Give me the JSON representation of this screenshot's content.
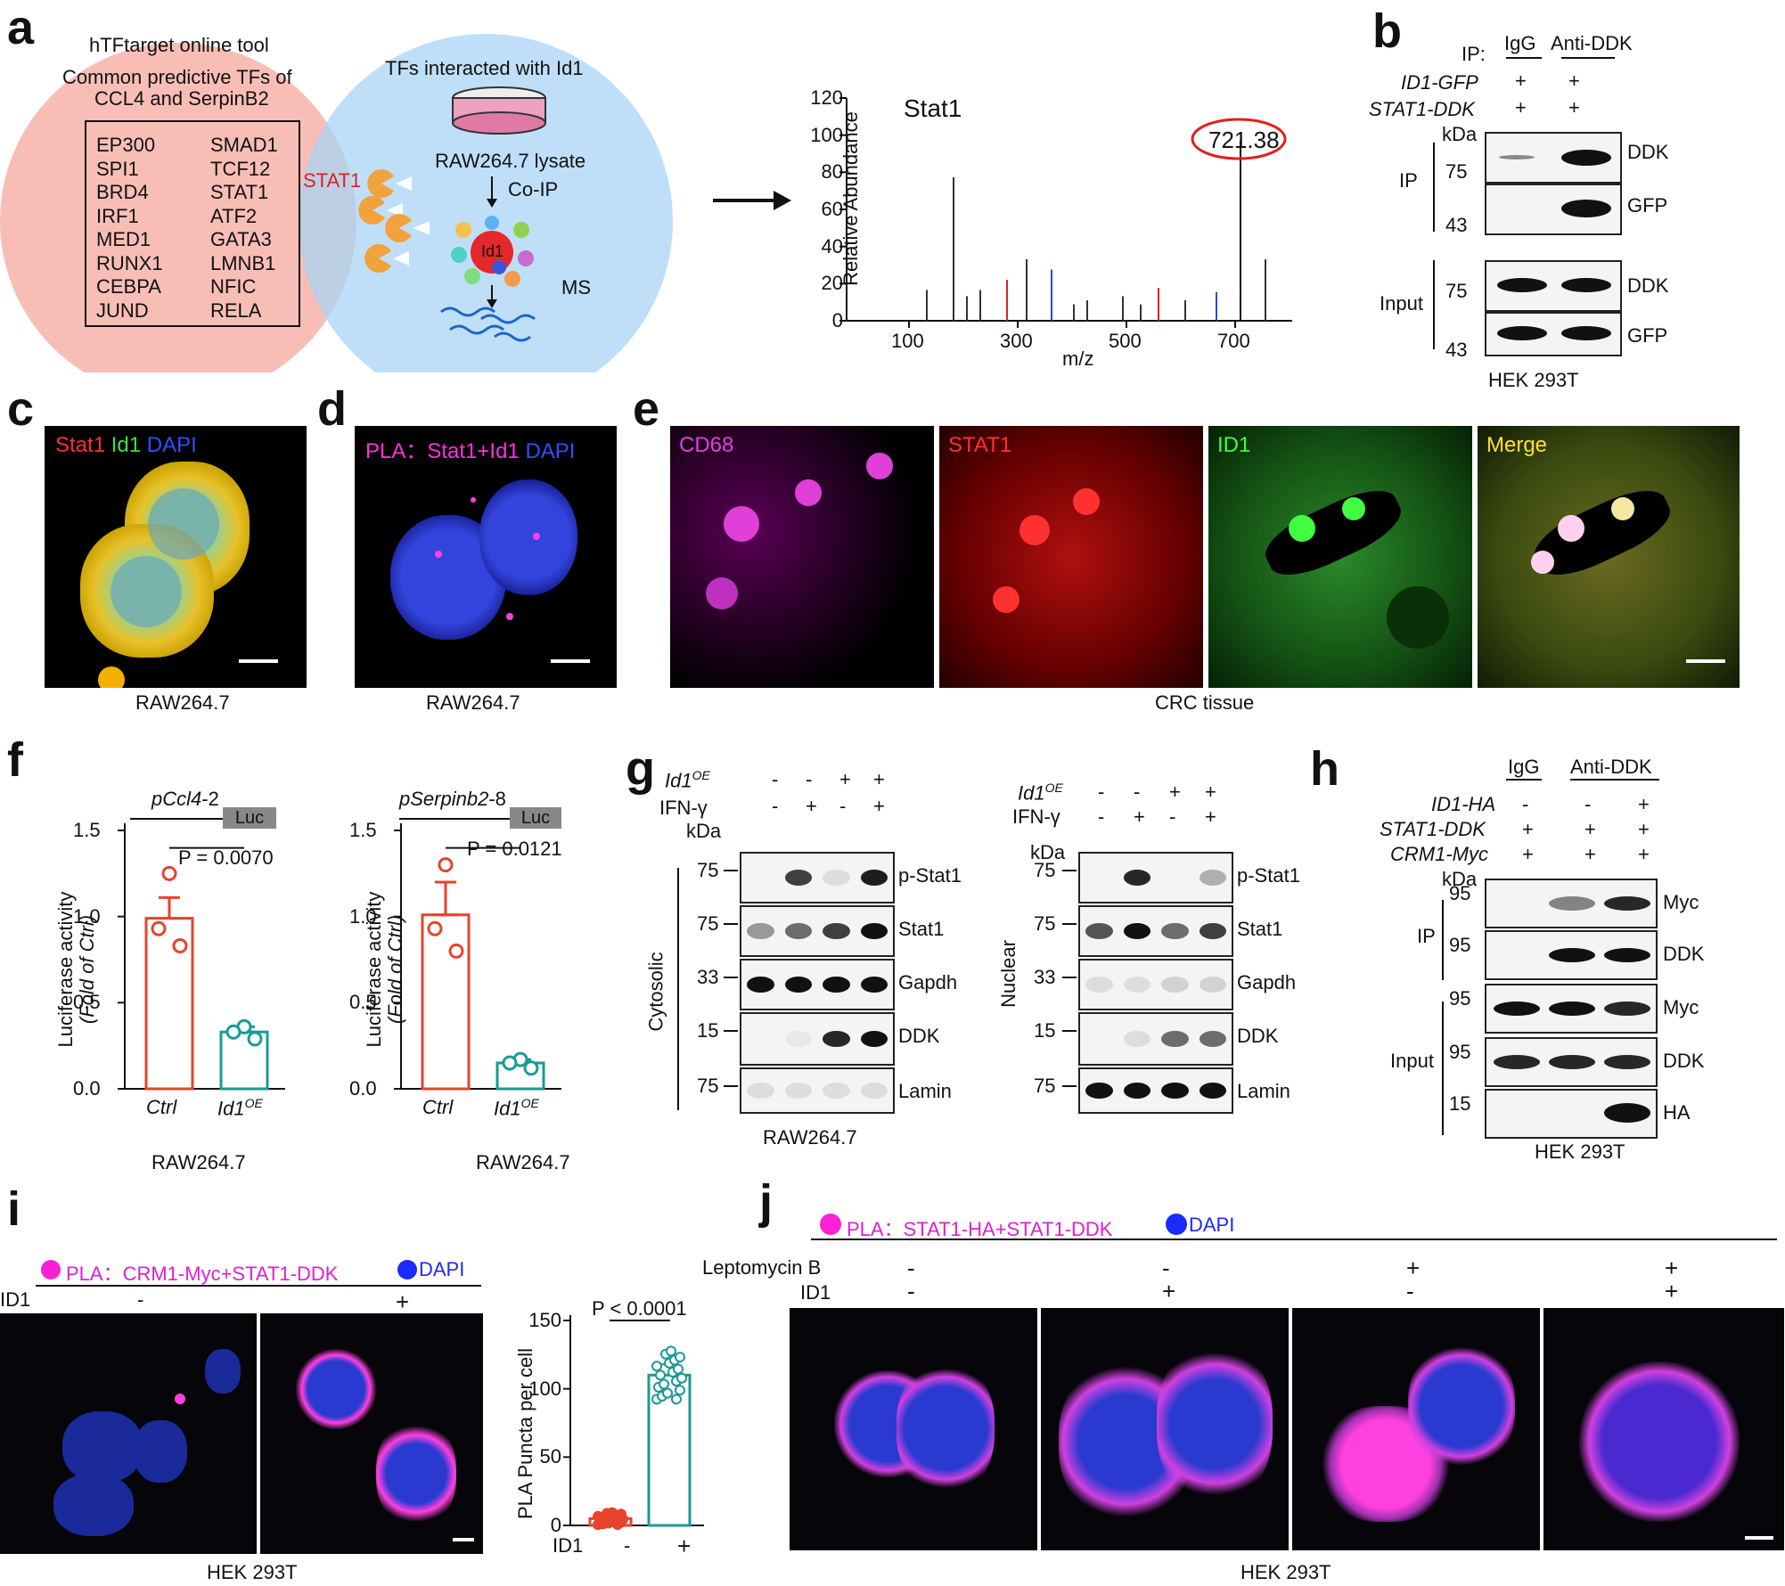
{
  "panels": [
    "a",
    "b",
    "c",
    "d",
    "e",
    "f",
    "g",
    "h",
    "i",
    "j"
  ],
  "a": {
    "left_circle_title": "hTFtarget online tool",
    "left_circle_subtitle1": "Common predictive TFs of",
    "left_circle_subtitle2": "CCL4 and SerpinB2",
    "tf_col1": [
      "EP300",
      "SPI1",
      "BRD4",
      "IRF1",
      "MED1",
      "RUNX1",
      "CEBPA",
      "JUND"
    ],
    "tf_col2": [
      "SMAD1",
      "TCF12",
      "STAT1",
      "ATF2",
      "GATA3",
      "LMNB1",
      "NFIC",
      "RELA"
    ],
    "overlap_label": "STAT1",
    "right_circle_title": "TFs interacted with Id1",
    "lysate_label": "RAW264.7 lysate",
    "coip_label": "Co-IP",
    "id1_label": "Id1",
    "ms_label": "MS",
    "spectrum": {
      "title": "Stat1",
      "ylabel": "Relative Abundance",
      "xlabel": "m/z",
      "yticks": [
        "0",
        "20",
        "40",
        "60",
        "80",
        "100",
        "120"
      ],
      "xticks": [
        "100",
        "300",
        "500",
        "700"
      ],
      "peak_label": "721.38"
    }
  },
  "b": {
    "ip_label": "IP:",
    "col_igg": "IgG",
    "col_anti": "Anti-DDK",
    "row1_label": "ID1-GFP",
    "row2_label": "STAT1-DDK",
    "plus": "+",
    "kda": "kDa",
    "ip_group": "IP",
    "input_group": "Input",
    "markers": [
      "75",
      "43",
      "75",
      "43"
    ],
    "blot_labels": [
      "DDK",
      "GFP",
      "DDK",
      "GFP"
    ],
    "cell_line": "HEK 293T"
  },
  "c": {
    "stain1": "Stat1",
    "stain2": "Id1",
    "stain3": "DAPI",
    "cell_line": "RAW264.7"
  },
  "d": {
    "stain1": "PLA：Stat1+Id1",
    "stain2": "DAPI",
    "cell_line": "RAW264.7"
  },
  "e": {
    "tiles": [
      "CD68",
      "STAT1",
      "ID1",
      "Merge"
    ],
    "tissue": "CRC tissue"
  },
  "f": {
    "charts": [
      {
        "construct": "pCcl4",
        "construct_suffix": "-2",
        "luc": "Luc",
        "pvalue": "P = 0.0070",
        "cell_line": "RAW264.7"
      },
      {
        "construct": "pSerpinb2",
        "construct_suffix": "-8",
        "luc": "Luc",
        "pvalue": "P = 0.0121",
        "cell_line": "RAW264.7"
      }
    ],
    "ylabel1": "Luciferase activity",
    "ylabel2": "(Fold of Ctrl)",
    "yticks": [
      "0.0",
      "0.5",
      "1.0",
      "1.5"
    ],
    "xcat1": "Ctrl",
    "xcat2": "Id1",
    "xcat2_sup": "OE"
  },
  "g": {
    "row1_label": "Id1",
    "row1_sup": "OE",
    "row2_label": "IFN-γ",
    "row1_signs": [
      "-",
      "-",
      "+",
      "+"
    ],
    "row2_signs": [
      "-",
      "+",
      "-",
      "+"
    ],
    "kda": "kDa",
    "left_markers": [
      "75",
      "75",
      "33",
      "15",
      "75"
    ],
    "right_markers": [
      "75",
      "75",
      "33",
      "15",
      "75"
    ],
    "blot_labels": [
      "p-Stat1",
      "Stat1",
      "Gapdh",
      "DDK",
      "Lamin"
    ],
    "cytosolic": "Cytosolic",
    "nuclear": "Nuclear",
    "cell_line": "RAW264.7"
  },
  "h": {
    "col_igg": "IgG",
    "col_anti": "Anti-DDK",
    "row1_label": "ID1-HA",
    "row2_label": "STAT1-DDK",
    "row3_label": "CRM1-Myc",
    "row1_signs": [
      "-",
      "-",
      "+"
    ],
    "row2_signs": [
      "+",
      "+",
      "+"
    ],
    "row3_signs": [
      "+",
      "+",
      "+"
    ],
    "kda": "kDa",
    "markers": [
      "95",
      "95",
      "95",
      "95",
      "15"
    ],
    "blot_labels": [
      "Myc",
      "DDK",
      "Myc",
      "DDK",
      "HA"
    ],
    "ip_group": "IP",
    "input_group": "Input",
    "cell_line": "HEK 293T"
  },
  "i": {
    "legend_pla": "PLA：CRM1-Myc+STAT1-DDK",
    "legend_dapi": "DAPI",
    "id1_label": "ID1",
    "signs": [
      "-",
      "+"
    ],
    "cell_line": "HEK 293T",
    "chart_ylabel": "PLA Puncta per cell",
    "chart_pvalue": "P < 0.0001",
    "chart_yticks": [
      "0",
      "50",
      "100",
      "150"
    ]
  },
  "j": {
    "legend_pla": "PLA：STAT1-HA+STAT1-DDK",
    "legend_dapi": "DAPI",
    "row1_label": "Leptomycin B",
    "row2_label": "ID1",
    "row1_signs": [
      "-",
      "-",
      "+",
      "+"
    ],
    "row2_signs": [
      "-",
      "+",
      "-",
      "+"
    ],
    "cell_line": "HEK 293T"
  },
  "colors": {
    "ctrl": "#e8432b",
    "oe": "#1a9a96",
    "pla": "#ff1fd6",
    "dapi": "#1a2bff",
    "stat1": "#e02020",
    "id1": "#2ecc2e"
  },
  "chart_data": [
    {
      "type": "bar",
      "categories": [
        "Ctrl",
        "Id1OE"
      ],
      "values": [
        0.99,
        0.33
      ],
      "errors": [
        0.12,
        0.03
      ],
      "points": [
        [
          1.25,
          0.93,
          0.83
        ],
        [
          0.36,
          0.33,
          0.29
        ]
      ],
      "ylabel": "Luciferase activity (Fold of Ctrl)",
      "ylim": [
        0,
        1.5
      ],
      "annotation": "P = 0.0070"
    },
    {
      "type": "bar",
      "categories": [
        "Ctrl",
        "Id1OE"
      ],
      "values": [
        1.01,
        0.15
      ],
      "errors": [
        0.19,
        0.02
      ],
      "points": [
        [
          1.3,
          0.93,
          0.8
        ],
        [
          0.17,
          0.15,
          0.12
        ]
      ],
      "ylabel": "Luciferase activity (Fold of Ctrl)",
      "ylim": [
        0,
        1.5
      ],
      "annotation": "P = 0.0121"
    },
    {
      "type": "bar",
      "categories": [
        "-",
        "+"
      ],
      "values": [
        5,
        110
      ],
      "errors": [
        2,
        8
      ],
      "ylabel": "PLA Puncta per cell",
      "ylim": [
        0,
        150
      ],
      "annotation": "P < 0.0001"
    }
  ]
}
